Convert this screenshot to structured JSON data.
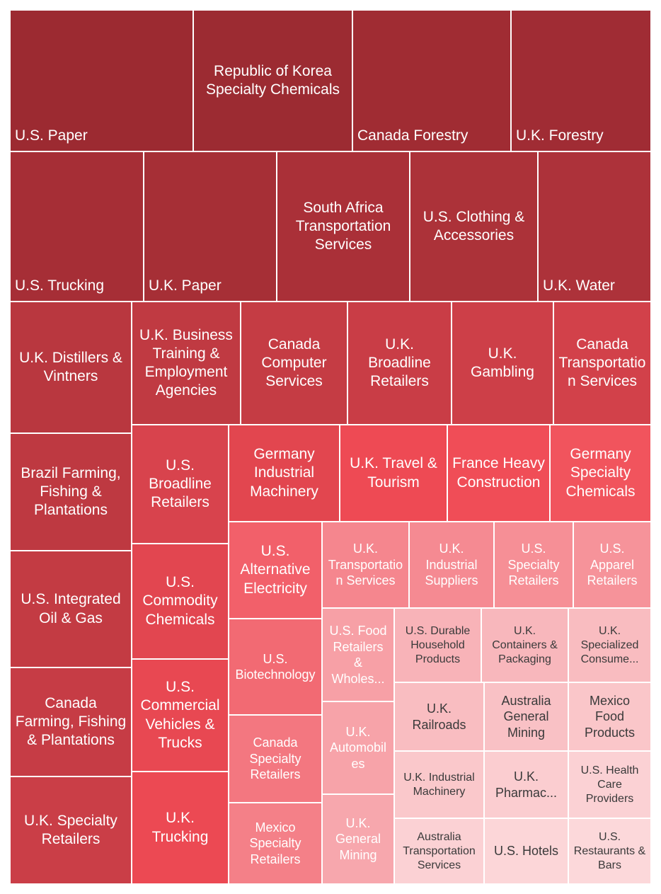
{
  "chart_data": {
    "type": "treemap",
    "title": "",
    "items": [
      {
        "label": "U.S. Paper",
        "color": "#9c2a31"
      },
      {
        "label": "Republic of Korea Specialty Chemicals",
        "color": "#9c2b32"
      },
      {
        "label": "Canada Forestry",
        "color": "#a02c33"
      },
      {
        "label": "U.K. Forestry",
        "color": "#a02c34"
      },
      {
        "label": "U.S. Trucking",
        "color": "#a62e36"
      },
      {
        "label": "U.K. Paper",
        "color": "#a62f36"
      },
      {
        "label": "South Africa Transportation Services",
        "color": "#aa3038"
      },
      {
        "label": "U.S. Clothing & Accessories",
        "color": "#ac3239"
      },
      {
        "label": "U.K. Water",
        "color": "#ad323a"
      },
      {
        "label": "U.K. Distillers & Vintners",
        "color": "#b9373f"
      },
      {
        "label": "U.K. Business Training & Employment Agencies",
        "color": "#c03a42"
      },
      {
        "label": "Canada Computer Services",
        "color": "#c53c44"
      },
      {
        "label": "U.K. Broadline Retailers",
        "color": "#c93d46"
      },
      {
        "label": "U.K. Gambling",
        "color": "#cd3f48"
      },
      {
        "label": "Canada Transportation Services",
        "color": "#d2414a"
      },
      {
        "label": "Brazil Farming, Fishing & Plantations",
        "color": "#be3941"
      },
      {
        "label": "U.S. Integrated Oil & Gas",
        "color": "#c33b43"
      },
      {
        "label": "Canada Farming, Fishing & Plantations",
        "color": "#c63c45"
      },
      {
        "label": "U.K. Specialty Retailers",
        "color": "#ca3e47"
      },
      {
        "label": "U.S. Broadline Retailers",
        "color": "#d8434d"
      },
      {
        "label": "Germany Industrial Machinery",
        "color": "#e2464f"
      },
      {
        "label": "U.K. Travel & Tourism",
        "color": "#ee4a54"
      },
      {
        "label": "France Heavy Construction",
        "color": "#f04d57"
      },
      {
        "label": "Germany Specialty Chemicals",
        "color": "#f1545d"
      },
      {
        "label": "U.S. Commodity Chemicals",
        "color": "#e24650"
      },
      {
        "label": "U.S. Commercial Vehicles & Trucks",
        "color": "#e84852"
      },
      {
        "label": "U.K. Trucking",
        "color": "#ec4953"
      },
      {
        "label": "U.S. Alternative Electricity",
        "color": "#f2606a"
      },
      {
        "label": "U.S. Biotechnology",
        "color": "#f26a73"
      },
      {
        "label": "Canada Specialty Retailers",
        "color": "#f37780"
      },
      {
        "label": "Mexico Specialty Retailers",
        "color": "#f48088"
      },
      {
        "label": "U.K. Transportation Services",
        "color": "#f5868e"
      },
      {
        "label": "U.K. Industrial Suppliers",
        "color": "#f58a92"
      },
      {
        "label": "U.S. Specialty Retailers",
        "color": "#f68f96"
      },
      {
        "label": "U.S. Apparel Retailers",
        "color": "#f6939a"
      },
      {
        "label": "U.S. Food Retailers & Wholes...",
        "color": "#f7a0a6"
      },
      {
        "label": "U.K. Automobiles",
        "color": "#f7a3a9"
      },
      {
        "label": "U.K. General Mining",
        "color": "#f7a7ad"
      },
      {
        "label": "U.S. Durable Household Products",
        "color": "#f8b3b8"
      },
      {
        "label": "U.K. Containers & Packaging",
        "color": "#f8b7bc"
      },
      {
        "label": "U.K. Specialized Consume...",
        "color": "#f9bcc0"
      },
      {
        "label": "U.K. Railroads",
        "color": "#f9bdc1"
      },
      {
        "label": "Australia General Mining",
        "color": "#f9c1c5"
      },
      {
        "label": "Mexico Food Products",
        "color": "#fac6c9"
      },
      {
        "label": "U.K. Industrial Machinery",
        "color": "#fac8cb"
      },
      {
        "label": "U.K. Pharmac...",
        "color": "#fbcdd0"
      },
      {
        "label": "U.S. Health Care Providers",
        "color": "#fbd1d4"
      },
      {
        "label": "Australia Transportation Services",
        "color": "#fbd1d4"
      },
      {
        "label": "U.S. Hotels",
        "color": "#fcd6d8"
      },
      {
        "label": "U.S. Restaurants & Bars",
        "color": "#fcd8da"
      }
    ]
  }
}
